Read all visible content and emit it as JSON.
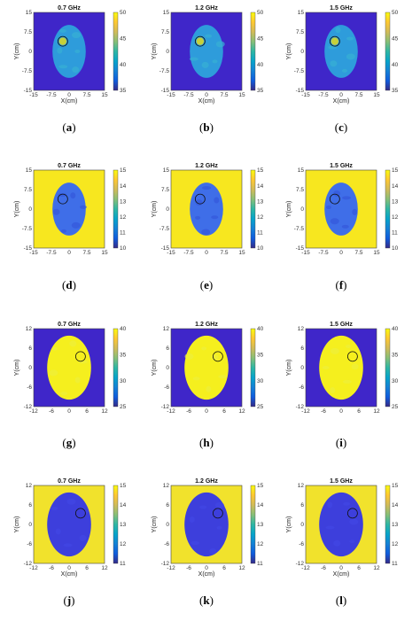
{
  "chart_data": [
    {
      "type": "heatmap",
      "panel_label": "a",
      "title": "0.7 GHz",
      "xlabel": "X(cm)",
      "ylabel": "Y(cm)",
      "xlim": [
        -15,
        15
      ],
      "ylim": [
        -15,
        15
      ],
      "xticks": [
        "-15",
        "-7.5",
        "0",
        "7.5",
        "15"
      ],
      "yticks": [
        "15",
        "7.5",
        "0",
        "-7.5",
        "-15"
      ],
      "clim": [
        35,
        50
      ],
      "cticks": [
        "50",
        "45",
        "40",
        "35"
      ],
      "background_color": "#3f26c9",
      "body_color": "#2e9cdb",
      "target_color": "#c6d03a"
    },
    {
      "type": "heatmap",
      "panel_label": "b",
      "title": "1.2 GHz",
      "xlabel": "X(cm)",
      "ylabel": "Y(cm)",
      "xlim": [
        -15,
        15
      ],
      "ylim": [
        -15,
        15
      ],
      "xticks": [
        "-15",
        "-7.5",
        "0",
        "7.5",
        "15"
      ],
      "yticks": [
        "15",
        "7.5",
        "0",
        "-7.5",
        "-15"
      ],
      "clim": [
        35,
        50
      ],
      "cticks": [
        "50",
        "45",
        "40",
        "35"
      ],
      "background_color": "#3f26c9",
      "body_color": "#2e9cdb",
      "target_color": "#c6d03a"
    },
    {
      "type": "heatmap",
      "panel_label": "c",
      "title": "1.5 GHz",
      "xlabel": "X(cm)",
      "ylabel": "Y(cm)",
      "xlim": [
        -15,
        15
      ],
      "ylim": [
        -15,
        15
      ],
      "xticks": [
        "-15",
        "-7.5",
        "0",
        "7.5",
        "15"
      ],
      "yticks": [
        "15",
        "7.5",
        "0",
        "-7.5",
        "-15"
      ],
      "clim": [
        35,
        50
      ],
      "cticks": [
        "50",
        "45",
        "40",
        "35"
      ],
      "background_color": "#3f26c9",
      "body_color": "#2e9cdb",
      "target_color": "#c6d03a"
    },
    {
      "type": "heatmap",
      "panel_label": "d",
      "title": "0.7 GHz",
      "xlabel": "",
      "ylabel": "Y(cm)",
      "xlim": [
        -15,
        15
      ],
      "ylim": [
        -15,
        15
      ],
      "xticks": [
        "-15",
        "-7.5",
        "0",
        "7.5",
        "15"
      ],
      "yticks": [
        "15",
        "7.5",
        "0",
        "-7.5",
        "-15"
      ],
      "clim": [
        10,
        15
      ],
      "cticks": [
        "15",
        "14",
        "13",
        "12",
        "11",
        "10"
      ],
      "background_color": "#f7e71f",
      "body_color": "#3f6ee8",
      "target_color": "#2fb8c9"
    },
    {
      "type": "heatmap",
      "panel_label": "e",
      "title": "1.2 GHz",
      "xlabel": "",
      "ylabel": "Y(cm)",
      "xlim": [
        -15,
        15
      ],
      "ylim": [
        -15,
        15
      ],
      "xticks": [
        "-15",
        "-7.5",
        "0",
        "7.5",
        "15"
      ],
      "yticks": [
        "15",
        "7.5",
        "0",
        "-7.5",
        "-15"
      ],
      "clim": [
        10,
        15
      ],
      "cticks": [
        "15",
        "14",
        "13",
        "12",
        "11",
        "10"
      ],
      "background_color": "#f7e71f",
      "body_color": "#3f6ee8",
      "target_color": "#2fb8c9"
    },
    {
      "type": "heatmap",
      "panel_label": "f",
      "title": "1.5 GHz",
      "xlabel": "",
      "ylabel": "Y(cm)",
      "xlim": [
        -15,
        15
      ],
      "ylim": [
        -15,
        15
      ],
      "xticks": [
        "-15",
        "-7.5",
        "0",
        "7.5",
        "15"
      ],
      "yticks": [
        "15",
        "7.5",
        "0",
        "-7.5",
        "-15"
      ],
      "clim": [
        10,
        15
      ],
      "cticks": [
        "15",
        "14",
        "13",
        "12",
        "11",
        "10"
      ],
      "background_color": "#f7e71f",
      "body_color": "#3f6ee8",
      "target_color": "#2fb8c9"
    },
    {
      "type": "heatmap",
      "panel_label": "g",
      "title": "0.7 GHz",
      "xlabel": "",
      "ylabel": "Y(cm)",
      "xlim": [
        -12,
        12
      ],
      "ylim": [
        -12,
        12
      ],
      "xticks": [
        "-12",
        "-6",
        "0",
        "6",
        "12"
      ],
      "yticks": [
        "12",
        "6",
        "0",
        "-6",
        "-12"
      ],
      "clim": [
        25,
        40
      ],
      "cticks": [
        "40",
        "35",
        "30",
        "25"
      ],
      "background_color": "#3f26c9",
      "body_color": "#f5ef1e",
      "target_color": "#2fb8c9"
    },
    {
      "type": "heatmap",
      "panel_label": "h",
      "title": "1.2 GHz",
      "xlabel": "",
      "ylabel": "Y(cm)",
      "xlim": [
        -12,
        12
      ],
      "ylim": [
        -12,
        12
      ],
      "xticks": [
        "-12",
        "-6",
        "0",
        "6",
        "12"
      ],
      "yticks": [
        "12",
        "6",
        "0",
        "-6",
        "-12"
      ],
      "clim": [
        25,
        40
      ],
      "cticks": [
        "40",
        "35",
        "30",
        "25"
      ],
      "background_color": "#3f26c9",
      "body_color": "#f5ef1e",
      "target_color": "#2fb8c9"
    },
    {
      "type": "heatmap",
      "panel_label": "i",
      "title": "1.5 GHz",
      "xlabel": "",
      "ylabel": "Y(cm)",
      "xlim": [
        -12,
        12
      ],
      "ylim": [
        -12,
        12
      ],
      "xticks": [
        "-12",
        "-6",
        "0",
        "6",
        "12"
      ],
      "yticks": [
        "12",
        "6",
        "0",
        "-6",
        "-12"
      ],
      "clim": [
        25,
        40
      ],
      "cticks": [
        "40",
        "35",
        "30",
        "25"
      ],
      "background_color": "#3f26c9",
      "body_color": "#f5ef1e",
      "target_color": "#2fb8c9"
    },
    {
      "type": "heatmap",
      "panel_label": "j",
      "title": "0.7 GHz",
      "xlabel": "X(cm)",
      "ylabel": "Y(cm)",
      "xlim": [
        -12,
        12
      ],
      "ylim": [
        -12,
        12
      ],
      "xticks": [
        "-12",
        "-6",
        "0",
        "6",
        "12"
      ],
      "yticks": [
        "12",
        "6",
        "0",
        "-6",
        "-12"
      ],
      "clim": [
        11,
        15
      ],
      "cticks": [
        "15",
        "14",
        "13",
        "12",
        "11"
      ],
      "background_color": "#f1e22c",
      "body_color": "#3d3fdc",
      "target_color": "#2fb8c9"
    },
    {
      "type": "heatmap",
      "panel_label": "k",
      "title": "1.2 GHz",
      "xlabel": "X(cm)",
      "ylabel": "Y(cm)",
      "xlim": [
        -12,
        12
      ],
      "ylim": [
        -12,
        12
      ],
      "xticks": [
        "-12",
        "-6",
        "0",
        "6",
        "12"
      ],
      "yticks": [
        "12",
        "6",
        "0",
        "-6",
        "-12"
      ],
      "clim": [
        11,
        15
      ],
      "cticks": [
        "15",
        "14",
        "13",
        "12",
        "11"
      ],
      "background_color": "#f1e22c",
      "body_color": "#3d3fdc",
      "target_color": "#2fb8c9"
    },
    {
      "type": "heatmap",
      "panel_label": "l",
      "title": "1.5 GHz",
      "xlabel": "X(cm)",
      "ylabel": "Y(cm)",
      "xlim": [
        -12,
        12
      ],
      "ylim": [
        -12,
        12
      ],
      "xticks": [
        "-12",
        "-6",
        "0",
        "6",
        "12"
      ],
      "yticks": [
        "12",
        "6",
        "0",
        "-6",
        "-12"
      ],
      "clim": [
        11,
        15
      ],
      "cticks": [
        "15",
        "14",
        "13",
        "12",
        "11"
      ],
      "background_color": "#f1e22c",
      "body_color": "#3d3fdc",
      "target_color": "#2fb8c9"
    }
  ],
  "colormap": "parula",
  "colormap_stops": [
    "#352a87",
    "#0f5cdd",
    "#1481d6",
    "#06a4ca",
    "#2eb7a4",
    "#87bf77",
    "#d1bb59",
    "#fec832",
    "#f9fb0e"
  ]
}
